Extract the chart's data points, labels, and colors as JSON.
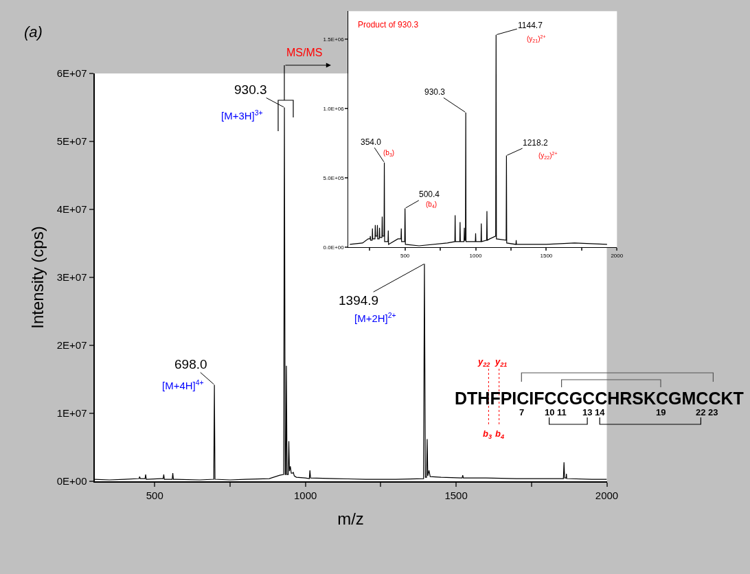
{
  "chart_data": [
    {
      "type": "line",
      "xlabel": "m/z",
      "ylabel": "Intensity (cps)",
      "x": [
        300,
        350,
        400,
        448,
        450,
        452,
        468,
        470,
        472,
        520,
        528,
        530,
        532,
        540,
        558,
        560,
        562,
        570,
        650,
        696,
        698,
        700,
        750,
        800,
        880,
        915,
        928,
        930.3,
        933,
        935,
        937,
        939,
        943,
        945,
        947,
        950,
        953,
        957,
        960,
        963,
        970,
        1000,
        1013,
        1015,
        1017,
        1100,
        1200,
        1300,
        1392,
        1394.9,
        1398,
        1402,
        1404,
        1406,
        1410,
        1414,
        1450,
        1520,
        1522,
        1524,
        1600,
        1700,
        1800,
        1856,
        1858,
        1860,
        1865,
        1866,
        1867,
        1950,
        2000
      ],
      "series": [
        {
          "color": "#000000",
          "values": [
            300000.0,
            200000.0,
            300000.0,
            400000.0,
            700000.0,
            400000.0,
            400000.0,
            1000000.0,
            300000.0,
            400000.0,
            400000.0,
            1000000.0,
            300000.0,
            300000.0,
            300000.0,
            1200000.0,
            300000.0,
            300000.0,
            200000.0,
            300000.0,
            14200000.0,
            300000.0,
            200000.0,
            300000.0,
            400000.0,
            900000.0,
            1000000.0,
            55000000.0,
            1000000.0,
            1000000.0,
            17000000.0,
            1000000.0,
            1000000.0,
            5900000.0,
            1500000.0,
            2200000.0,
            1200000.0,
            1200000.0,
            1300000.0,
            800000.0,
            600000.0,
            500000.0,
            400000.0,
            1600000.0,
            500000.0,
            400000.0,
            300000.0,
            300000.0,
            400000.0,
            32000000.0,
            600000.0,
            600000.0,
            6200000.0,
            800000.0,
            1600000.0,
            700000.0,
            600000.0,
            500000.0,
            900000.0,
            500000.0,
            500000.0,
            400000.0,
            400000.0,
            400000.0,
            2800000.0,
            500000.0,
            500000.0,
            1100000.0,
            400000.0,
            300000.0,
            300000.0
          ]
        }
      ],
      "xlim": [
        300,
        2000
      ],
      "ylim": [
        0,
        60000000.0
      ],
      "xticks": [
        500,
        {
          "value": 750,
          "label": null
        },
        1000,
        {
          "value": 1250,
          "label": null
        },
        1500,
        {
          "value": 1750,
          "label": null
        },
        2000
      ],
      "yticks": [
        {
          "value": 0,
          "label": "0E+00"
        },
        {
          "value": 10000000.0,
          "label": "1E+07"
        },
        {
          "value": 20000000.0,
          "label": "2E+07"
        },
        {
          "value": 30000000.0,
          "label": "3E+07"
        },
        {
          "value": 40000000.0,
          "label": "4E+07"
        },
        {
          "value": 50000000.0,
          "label": "5E+07"
        },
        {
          "value": 60000000.0,
          "label": "6E+07"
        }
      ],
      "annotations": [
        "(a)",
        "MS/MS",
        {
          "text": "930.3",
          "x": 930.3,
          "y": 55000000.0
        },
        "[M+3H]$^{3+}$",
        {
          "text": "698.0",
          "x": 698,
          "y": 14200000.0
        },
        "[M+4H]$^{4+}$",
        {
          "text": "1394.9",
          "x": 1394.9,
          "y": 32000000.0
        },
        "[M+2H]$^{2+}$",
        "DTHFPICIFCCGCCHRSKCGMCCKT",
        "7",
        "10",
        "11",
        "13",
        "14",
        "19",
        "22",
        "23",
        "y$_{22}$",
        "y$_{21}$",
        "b$_{3}$",
        "b$_{4}$"
      ]
    },
    {
      "type": "line",
      "title": "Product of 930.3",
      "x": [
        110,
        200,
        240,
        253,
        255,
        257,
        268,
        270,
        272,
        288,
        290,
        292,
        303,
        305,
        307,
        318,
        320,
        322,
        337,
        339,
        341,
        352,
        354,
        356,
        380,
        382,
        384,
        450,
        472,
        474,
        476,
        498,
        500.4,
        503,
        600,
        800,
        853,
        855,
        857,
        888,
        890,
        892,
        918,
        920,
        922,
        928,
        930.3,
        932,
        998,
        1000,
        1002,
        1038,
        1040,
        1042,
        1078,
        1080,
        1082,
        1100,
        1142,
        1144.7,
        1147,
        1216,
        1218.2,
        1220,
        1285,
        1287,
        1289,
        1500,
        1700,
        1930
      ],
      "series": [
        {
          "color": "#000000",
          "values": [
            20000.0,
            30000.0,
            60000.0,
            60000.0,
            80000.0,
            50000.0,
            50000.0,
            135000.0,
            60000.0,
            60000.0,
            160000.0,
            80000.0,
            80000.0,
            160000.0,
            60000.0,
            60000.0,
            140000.0,
            70000.0,
            70000.0,
            220000.0,
            80000.0,
            80000.0,
            610000.0,
            40000.0,
            40000.0,
            120000.0,
            20000.0,
            60000.0,
            60000.0,
            135000.0,
            40000.0,
            40000.0,
            280000.0,
            20000.0,
            10000.0,
            30000.0,
            40000.0,
            230000.0,
            40000.0,
            40000.0,
            180000.0,
            40000.0,
            40000.0,
            140000.0,
            50000.0,
            50000.0,
            970000.0,
            40000.0,
            40000.0,
            100000.0,
            40000.0,
            40000.0,
            170000.0,
            40000.0,
            50000.0,
            260000.0,
            50000.0,
            60000.0,
            80000.0,
            1530000.0,
            60000.0,
            50000.0,
            660000.0,
            30000.0,
            20000.0,
            50000.0,
            20000.0,
            20000.0,
            30000.0,
            20000.0
          ]
        }
      ],
      "xlim": [
        100,
        2000
      ],
      "ylim": [
        0,
        1700000.0
      ],
      "xticks": [
        {
          "value": 250,
          "label": null
        },
        500,
        {
          "value": 750,
          "label": null
        },
        1000,
        {
          "value": 1250,
          "label": null
        },
        1500,
        {
          "value": 1750,
          "label": null
        },
        2000
      ],
      "yticks": [
        {
          "value": 0,
          "label": "0.0E+00"
        },
        {
          "value": 500000.0,
          "label": "5.0E+05"
        },
        {
          "value": 1000000.0,
          "label": "1.0E+06"
        },
        {
          "value": 1500000.0,
          "label": "1.5E+06"
        }
      ],
      "annotations": [
        {
          "text": "354.0",
          "x": 354,
          "y": 610000.0
        },
        "(b$_{3}$)",
        {
          "text": "500.4",
          "x": 500.4,
          "y": 280000.0
        },
        "(b$_{4}$)",
        {
          "text": "930.3",
          "x": 930.3,
          "y": 970000.0
        },
        {
          "text": "1144.7",
          "x": 1144.7,
          "y": 1530000.0
        },
        "(y$_{21}$)$^{2+}$",
        {
          "text": "1218.2",
          "x": 1218.2,
          "y": 660000.0
        },
        "(y$_{22}$)$^{2+}$"
      ]
    }
  ]
}
